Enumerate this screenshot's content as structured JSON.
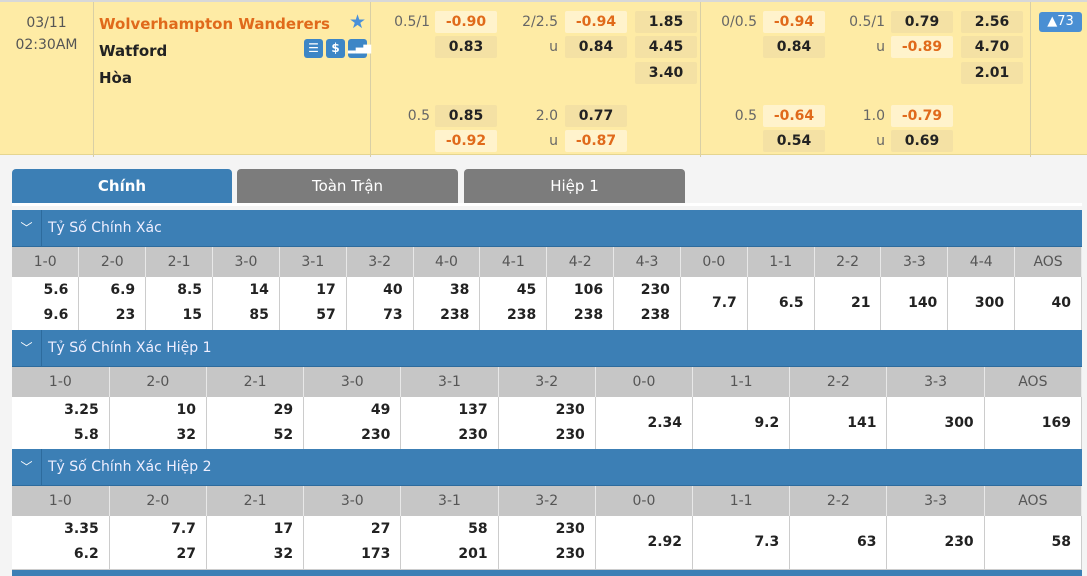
{
  "match": {
    "date": "03/11",
    "time": "02:30AM",
    "home": "Wolverhampton Wanderers",
    "away": "Watford",
    "draw": "Hòa",
    "count_badge": "▲73",
    "icons": [
      "favorite-star-icon",
      "lineup-icon",
      "dollar-icon",
      "stats-icon"
    ]
  },
  "odds_cols": [
    {
      "label_x": 380,
      "box_x": 435,
      "cells": [
        {
          "row": 0,
          "label": "0.5/1",
          "value": "-0.90"
        },
        {
          "row": 1,
          "label": "",
          "value": "0.83"
        },
        {
          "row": 3,
          "label": "0.5",
          "value": "0.85"
        },
        {
          "row": 4,
          "label": "",
          "value": "-0.92"
        }
      ]
    },
    {
      "label_x": 508,
      "box_x": 565,
      "cells": [
        {
          "row": 0,
          "label": "2/2.5",
          "value": "-0.94"
        },
        {
          "row": 1,
          "label": "u",
          "value": "0.84"
        },
        {
          "row": 3,
          "label": "2.0",
          "value": "0.77"
        },
        {
          "row": 4,
          "label": "u",
          "value": "-0.87"
        }
      ]
    },
    {
      "label_x": null,
      "box_x": 635,
      "cells": [
        {
          "row": 0,
          "label": "",
          "value": "1.85"
        },
        {
          "row": 1,
          "label": "",
          "value": "4.45"
        },
        {
          "row": 2,
          "label": "",
          "value": "3.40"
        }
      ]
    },
    {
      "label_x": 707,
      "box_x": 763,
      "cells": [
        {
          "row": 0,
          "label": "0/0.5",
          "value": "-0.94"
        },
        {
          "row": 1,
          "label": "",
          "value": "0.84"
        },
        {
          "row": 3,
          "label": "0.5",
          "value": "-0.64"
        },
        {
          "row": 4,
          "label": "",
          "value": "0.54"
        }
      ]
    },
    {
      "label_x": 835,
      "box_x": 891,
      "cells": [
        {
          "row": 0,
          "label": "0.5/1",
          "value": "0.79"
        },
        {
          "row": 1,
          "label": "u",
          "value": "-0.89"
        },
        {
          "row": 3,
          "label": "1.0",
          "value": "-0.79"
        },
        {
          "row": 4,
          "label": "u",
          "value": "0.69"
        }
      ]
    },
    {
      "label_x": null,
      "box_x": 961,
      "cells": [
        {
          "row": 0,
          "label": "",
          "value": "2.56"
        },
        {
          "row": 1,
          "label": "",
          "value": "4.70"
        },
        {
          "row": 2,
          "label": "",
          "value": "2.01"
        }
      ]
    }
  ],
  "tabs": [
    {
      "label": "Chính",
      "active": true
    },
    {
      "label": "Toàn Trận",
      "active": false
    },
    {
      "label": "Hiệp 1",
      "active": false
    }
  ],
  "sections": [
    {
      "title": "Tỷ Số Chính Xác",
      "columns": [
        "1-0",
        "2-0",
        "2-1",
        "3-0",
        "3-1",
        "3-2",
        "4-0",
        "4-1",
        "4-2",
        "4-3",
        "0-0",
        "1-1",
        "2-2",
        "3-3",
        "4-4",
        "AOS"
      ],
      "values": [
        [
          "5.6",
          "9.6"
        ],
        [
          "6.9",
          "23"
        ],
        [
          "8.5",
          "15"
        ],
        [
          "14",
          "85"
        ],
        [
          "17",
          "57"
        ],
        [
          "40",
          "73"
        ],
        [
          "38",
          "238"
        ],
        [
          "45",
          "238"
        ],
        [
          "106",
          "238"
        ],
        [
          "230",
          "238"
        ],
        [
          "7.7"
        ],
        [
          "6.5"
        ],
        [
          "21"
        ],
        [
          "140"
        ],
        [
          "300"
        ],
        [
          "40"
        ]
      ]
    },
    {
      "title": "Tỷ Số Chính Xác Hiệp 1",
      "columns": [
        "1-0",
        "2-0",
        "2-1",
        "3-0",
        "3-1",
        "3-2",
        "0-0",
        "1-1",
        "2-2",
        "3-3",
        "AOS"
      ],
      "values": [
        [
          "3.25",
          "5.8"
        ],
        [
          "10",
          "32"
        ],
        [
          "29",
          "52"
        ],
        [
          "49",
          "230"
        ],
        [
          "137",
          "230"
        ],
        [
          "230",
          "230"
        ],
        [
          "2.34"
        ],
        [
          "9.2"
        ],
        [
          "141"
        ],
        [
          "300"
        ],
        [
          "169"
        ]
      ]
    },
    {
      "title": "Tỷ Số Chính Xác Hiệp 2",
      "columns": [
        "1-0",
        "2-0",
        "2-1",
        "3-0",
        "3-1",
        "3-2",
        "0-0",
        "1-1",
        "2-2",
        "3-3",
        "AOS"
      ],
      "values": [
        [
          "3.35",
          "6.2"
        ],
        [
          "7.7",
          "27"
        ],
        [
          "17",
          "32"
        ],
        [
          "27",
          "173"
        ],
        [
          "58",
          "201"
        ],
        [
          "230",
          "230"
        ],
        [
          "2.92"
        ],
        [
          "7.3"
        ],
        [
          "63"
        ],
        [
          "230"
        ],
        [
          "58"
        ]
      ]
    }
  ]
}
